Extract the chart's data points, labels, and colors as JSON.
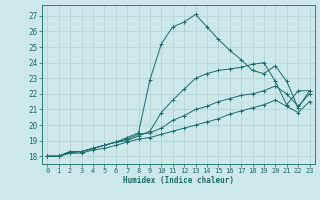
{
  "xlabel": "Humidex (Indice chaleur)",
  "xlim": [
    -0.5,
    23.5
  ],
  "ylim": [
    17.5,
    27.7
  ],
  "xticks": [
    0,
    1,
    2,
    3,
    4,
    5,
    6,
    7,
    8,
    9,
    10,
    11,
    12,
    13,
    14,
    15,
    16,
    17,
    18,
    19,
    20,
    21,
    22,
    23
  ],
  "yticks": [
    18,
    19,
    20,
    21,
    22,
    23,
    24,
    25,
    26,
    27
  ],
  "background_color": "#cde8e8",
  "grid_color": "#b0d0d0",
  "line_color": "#1a6b6b",
  "lines": [
    {
      "x": [
        0,
        1,
        2,
        3,
        4,
        5,
        6,
        7,
        8,
        9,
        10,
        11,
        12,
        13,
        14,
        15,
        16,
        17,
        18,
        19,
        20,
        21,
        22,
        23
      ],
      "y": [
        18.0,
        18.0,
        18.3,
        18.3,
        18.5,
        18.7,
        18.9,
        19.2,
        19.5,
        22.9,
        25.2,
        26.3,
        26.6,
        27.1,
        26.3,
        25.5,
        24.8,
        24.2,
        23.5,
        23.3,
        23.8,
        22.8,
        21.1,
        22.2
      ]
    },
    {
      "x": [
        0,
        1,
        2,
        3,
        4,
        5,
        6,
        7,
        8,
        9,
        10,
        11,
        12,
        13,
        14,
        15,
        16,
        17,
        18,
        19,
        20,
        21,
        22,
        23
      ],
      "y": [
        18.0,
        18.0,
        18.3,
        18.3,
        18.5,
        18.7,
        18.9,
        19.0,
        19.3,
        19.6,
        20.8,
        21.6,
        22.3,
        23.0,
        23.3,
        23.5,
        23.6,
        23.7,
        23.9,
        24.0,
        22.8,
        21.3,
        22.2,
        22.2
      ]
    },
    {
      "x": [
        0,
        1,
        2,
        3,
        4,
        5,
        6,
        7,
        8,
        9,
        10,
        11,
        12,
        13,
        14,
        15,
        16,
        17,
        18,
        19,
        20,
        21,
        22,
        23
      ],
      "y": [
        18.0,
        18.0,
        18.2,
        18.3,
        18.5,
        18.7,
        18.9,
        19.1,
        19.4,
        19.5,
        19.8,
        20.3,
        20.6,
        21.0,
        21.2,
        21.5,
        21.7,
        21.9,
        22.0,
        22.2,
        22.5,
        22.0,
        21.2,
        22.0
      ]
    },
    {
      "x": [
        0,
        1,
        2,
        3,
        4,
        5,
        6,
        7,
        8,
        9,
        10,
        11,
        12,
        13,
        14,
        15,
        16,
        17,
        18,
        19,
        20,
        21,
        22,
        23
      ],
      "y": [
        18.0,
        18.0,
        18.2,
        18.2,
        18.4,
        18.5,
        18.7,
        18.9,
        19.1,
        19.2,
        19.4,
        19.6,
        19.8,
        20.0,
        20.2,
        20.4,
        20.7,
        20.9,
        21.1,
        21.3,
        21.6,
        21.2,
        20.8,
        21.5
      ]
    }
  ]
}
